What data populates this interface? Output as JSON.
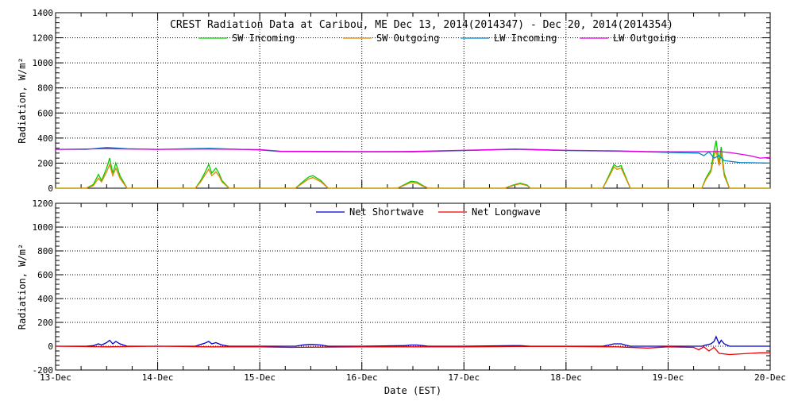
{
  "chart_data": [
    {
      "type": "line",
      "title": "CREST Radiation Data at Caribou, ME   Dec 13, 2014(2014347) - Dec 20, 2014(2014354)",
      "ylabel": "Radiation, W/m^2",
      "xlabel": "",
      "ylim": [
        0,
        1400
      ],
      "yticks": [
        0,
        200,
        400,
        600,
        800,
        1000,
        1200,
        1400
      ],
      "xlim": [
        0,
        7
      ],
      "grid": "dotted",
      "legend_position": "top",
      "series": [
        {
          "name": "SW Incoming",
          "color": "#00cc00",
          "points": [
            [
              0,
              0
            ],
            [
              0.3,
              0
            ],
            [
              0.37,
              30
            ],
            [
              0.42,
              110
            ],
            [
              0.45,
              60
            ],
            [
              0.5,
              160
            ],
            [
              0.53,
              240
            ],
            [
              0.56,
              120
            ],
            [
              0.59,
              200
            ],
            [
              0.63,
              100
            ],
            [
              0.7,
              0
            ],
            [
              1.0,
              0
            ],
            [
              1.37,
              0
            ],
            [
              1.42,
              60
            ],
            [
              1.46,
              120
            ],
            [
              1.5,
              190
            ],
            [
              1.53,
              120
            ],
            [
              1.57,
              160
            ],
            [
              1.6,
              120
            ],
            [
              1.63,
              60
            ],
            [
              1.7,
              0
            ],
            [
              2.0,
              0
            ],
            [
              2.35,
              0
            ],
            [
              2.42,
              50
            ],
            [
              2.48,
              90
            ],
            [
              2.52,
              100
            ],
            [
              2.6,
              60
            ],
            [
              2.67,
              0
            ],
            [
              3.0,
              0
            ],
            [
              3.35,
              0
            ],
            [
              3.42,
              30
            ],
            [
              3.48,
              55
            ],
            [
              3.54,
              50
            ],
            [
              3.6,
              20
            ],
            [
              3.65,
              0
            ],
            [
              4.0,
              0
            ],
            [
              4.4,
              0
            ],
            [
              4.48,
              25
            ],
            [
              4.55,
              40
            ],
            [
              4.62,
              25
            ],
            [
              4.65,
              0
            ],
            [
              5.0,
              0
            ],
            [
              5.36,
              0
            ],
            [
              5.42,
              100
            ],
            [
              5.47,
              190
            ],
            [
              5.5,
              170
            ],
            [
              5.54,
              180
            ],
            [
              5.58,
              100
            ],
            [
              5.63,
              0
            ],
            [
              6.0,
              0
            ],
            [
              6.33,
              0
            ],
            [
              6.37,
              80
            ],
            [
              6.42,
              150
            ],
            [
              6.45,
              300
            ],
            [
              6.47,
              380
            ],
            [
              6.5,
              200
            ],
            [
              6.52,
              330
            ],
            [
              6.55,
              120
            ],
            [
              6.6,
              0
            ],
            [
              7.0,
              0
            ]
          ]
        },
        {
          "name": "SW Outgoing",
          "color": "#e08800",
          "points": [
            [
              0,
              0
            ],
            [
              0.3,
              0
            ],
            [
              0.37,
              20
            ],
            [
              0.42,
              80
            ],
            [
              0.45,
              50
            ],
            [
              0.5,
              130
            ],
            [
              0.53,
              190
            ],
            [
              0.56,
              100
            ],
            [
              0.59,
              160
            ],
            [
              0.63,
              80
            ],
            [
              0.7,
              0
            ],
            [
              1.0,
              0
            ],
            [
              1.37,
              0
            ],
            [
              1.42,
              50
            ],
            [
              1.46,
              100
            ],
            [
              1.5,
              150
            ],
            [
              1.53,
              100
            ],
            [
              1.57,
              130
            ],
            [
              1.6,
              100
            ],
            [
              1.63,
              50
            ],
            [
              1.7,
              0
            ],
            [
              2.0,
              0
            ],
            [
              2.35,
              0
            ],
            [
              2.42,
              40
            ],
            [
              2.48,
              75
            ],
            [
              2.52,
              85
            ],
            [
              2.6,
              50
            ],
            [
              2.67,
              0
            ],
            [
              3.0,
              0
            ],
            [
              3.35,
              0
            ],
            [
              3.42,
              25
            ],
            [
              3.48,
              45
            ],
            [
              3.54,
              40
            ],
            [
              3.6,
              15
            ],
            [
              3.65,
              0
            ],
            [
              4.0,
              0
            ],
            [
              4.4,
              0
            ],
            [
              4.48,
              20
            ],
            [
              4.55,
              35
            ],
            [
              4.62,
              20
            ],
            [
              4.65,
              0
            ],
            [
              5.0,
              0
            ],
            [
              5.36,
              0
            ],
            [
              5.42,
              90
            ],
            [
              5.47,
              170
            ],
            [
              5.5,
              150
            ],
            [
              5.54,
              160
            ],
            [
              5.58,
              90
            ],
            [
              5.63,
              0
            ],
            [
              6.0,
              0
            ],
            [
              6.33,
              0
            ],
            [
              6.37,
              70
            ],
            [
              6.42,
              130
            ],
            [
              6.45,
              260
            ],
            [
              6.47,
              300
            ],
            [
              6.5,
              180
            ],
            [
              6.52,
              280
            ],
            [
              6.55,
              100
            ],
            [
              6.6,
              0
            ],
            [
              7.0,
              0
            ]
          ]
        },
        {
          "name": "LW Incoming",
          "color": "#0088cc",
          "points": [
            [
              0,
              310
            ],
            [
              0.3,
              310
            ],
            [
              0.5,
              325
            ],
            [
              0.7,
              315
            ],
            [
              1.0,
              310
            ],
            [
              1.5,
              318
            ],
            [
              2.0,
              305
            ],
            [
              2.2,
              292
            ],
            [
              3.0,
              290
            ],
            [
              3.5,
              290
            ],
            [
              4.0,
              300
            ],
            [
              4.5,
              310
            ],
            [
              5.0,
              300
            ],
            [
              5.5,
              295
            ],
            [
              5.8,
              290
            ],
            [
              6.0,
              285
            ],
            [
              6.3,
              280
            ],
            [
              6.35,
              260
            ],
            [
              6.4,
              290
            ],
            [
              6.45,
              240
            ],
            [
              6.5,
              260
            ],
            [
              6.55,
              220
            ],
            [
              6.7,
              205
            ],
            [
              7.0,
              200
            ]
          ]
        },
        {
          "name": "LW Outgoing",
          "color": "#dd00dd",
          "points": [
            [
              0,
              310
            ],
            [
              0.5,
              315
            ],
            [
              1.0,
              310
            ],
            [
              1.5,
              312
            ],
            [
              2.0,
              308
            ],
            [
              2.2,
              295
            ],
            [
              3.0,
              292
            ],
            [
              3.5,
              293
            ],
            [
              4.0,
              302
            ],
            [
              4.5,
              312
            ],
            [
              5.0,
              302
            ],
            [
              5.5,
              298
            ],
            [
              5.8,
              292
            ],
            [
              6.0,
              290
            ],
            [
              6.5,
              292
            ],
            [
              6.6,
              285
            ],
            [
              6.8,
              260
            ],
            [
              6.9,
              240
            ],
            [
              7.0,
              245
            ]
          ]
        }
      ]
    },
    {
      "type": "line",
      "title": "",
      "ylabel": "Radiation, W/m^2",
      "xlabel": "Date (EST)",
      "ylim": [
        -200,
        1200
      ],
      "yticks": [
        -200,
        0,
        200,
        400,
        600,
        800,
        1000,
        1200
      ],
      "xlim": [
        0,
        7
      ],
      "grid": "dotted",
      "legend_position": "top",
      "categories": [
        "13-Dec",
        "14-Dec",
        "15-Dec",
        "16-Dec",
        "17-Dec",
        "18-Dec",
        "19-Dec",
        "20-Dec"
      ],
      "series": [
        {
          "name": "Net Shortwave",
          "color": "#0000cc",
          "points": [
            [
              0,
              0
            ],
            [
              0.3,
              0
            ],
            [
              0.37,
              5
            ],
            [
              0.42,
              20
            ],
            [
              0.45,
              10
            ],
            [
              0.5,
              30
            ],
            [
              0.53,
              50
            ],
            [
              0.56,
              20
            ],
            [
              0.59,
              40
            ],
            [
              0.63,
              20
            ],
            [
              0.7,
              0
            ],
            [
              1.0,
              0
            ],
            [
              1.37,
              0
            ],
            [
              1.42,
              15
            ],
            [
              1.46,
              25
            ],
            [
              1.5,
              40
            ],
            [
              1.53,
              20
            ],
            [
              1.57,
              30
            ],
            [
              1.6,
              20
            ],
            [
              1.63,
              10
            ],
            [
              1.7,
              0
            ],
            [
              2.0,
              0
            ],
            [
              2.35,
              0
            ],
            [
              2.42,
              10
            ],
            [
              2.48,
              15
            ],
            [
              2.52,
              15
            ],
            [
              2.6,
              10
            ],
            [
              2.67,
              0
            ],
            [
              3.0,
              0
            ],
            [
              3.42,
              5
            ],
            [
              3.48,
              10
            ],
            [
              3.54,
              10
            ],
            [
              3.6,
              5
            ],
            [
              3.65,
              0
            ],
            [
              4.0,
              0
            ],
            [
              4.48,
              5
            ],
            [
              4.55,
              5
            ],
            [
              4.65,
              0
            ],
            [
              5.0,
              0
            ],
            [
              5.36,
              0
            ],
            [
              5.42,
              10
            ],
            [
              5.47,
              20
            ],
            [
              5.5,
              20
            ],
            [
              5.54,
              20
            ],
            [
              5.58,
              10
            ],
            [
              5.63,
              0
            ],
            [
              6.0,
              0
            ],
            [
              6.33,
              0
            ],
            [
              6.37,
              10
            ],
            [
              6.42,
              20
            ],
            [
              6.45,
              40
            ],
            [
              6.47,
              80
            ],
            [
              6.5,
              20
            ],
            [
              6.52,
              50
            ],
            [
              6.55,
              20
            ],
            [
              6.6,
              0
            ],
            [
              7.0,
              0
            ]
          ]
        },
        {
          "name": "Net Longwave",
          "color": "#ee0000",
          "points": [
            [
              0,
              0
            ],
            [
              0.5,
              -5
            ],
            [
              1.0,
              0
            ],
            [
              1.5,
              -5
            ],
            [
              2.0,
              -5
            ],
            [
              2.3,
              -10
            ],
            [
              3.0,
              -5
            ],
            [
              3.5,
              -5
            ],
            [
              4.0,
              -5
            ],
            [
              4.5,
              -3
            ],
            [
              5.0,
              -2
            ],
            [
              5.5,
              -5
            ],
            [
              5.8,
              -15
            ],
            [
              6.0,
              -5
            ],
            [
              6.25,
              -10
            ],
            [
              6.3,
              -30
            ],
            [
              6.35,
              -5
            ],
            [
              6.4,
              -40
            ],
            [
              6.45,
              -10
            ],
            [
              6.5,
              -60
            ],
            [
              6.6,
              -70
            ],
            [
              6.8,
              -60
            ],
            [
              6.9,
              -55
            ],
            [
              7.0,
              -55
            ]
          ]
        }
      ]
    }
  ]
}
